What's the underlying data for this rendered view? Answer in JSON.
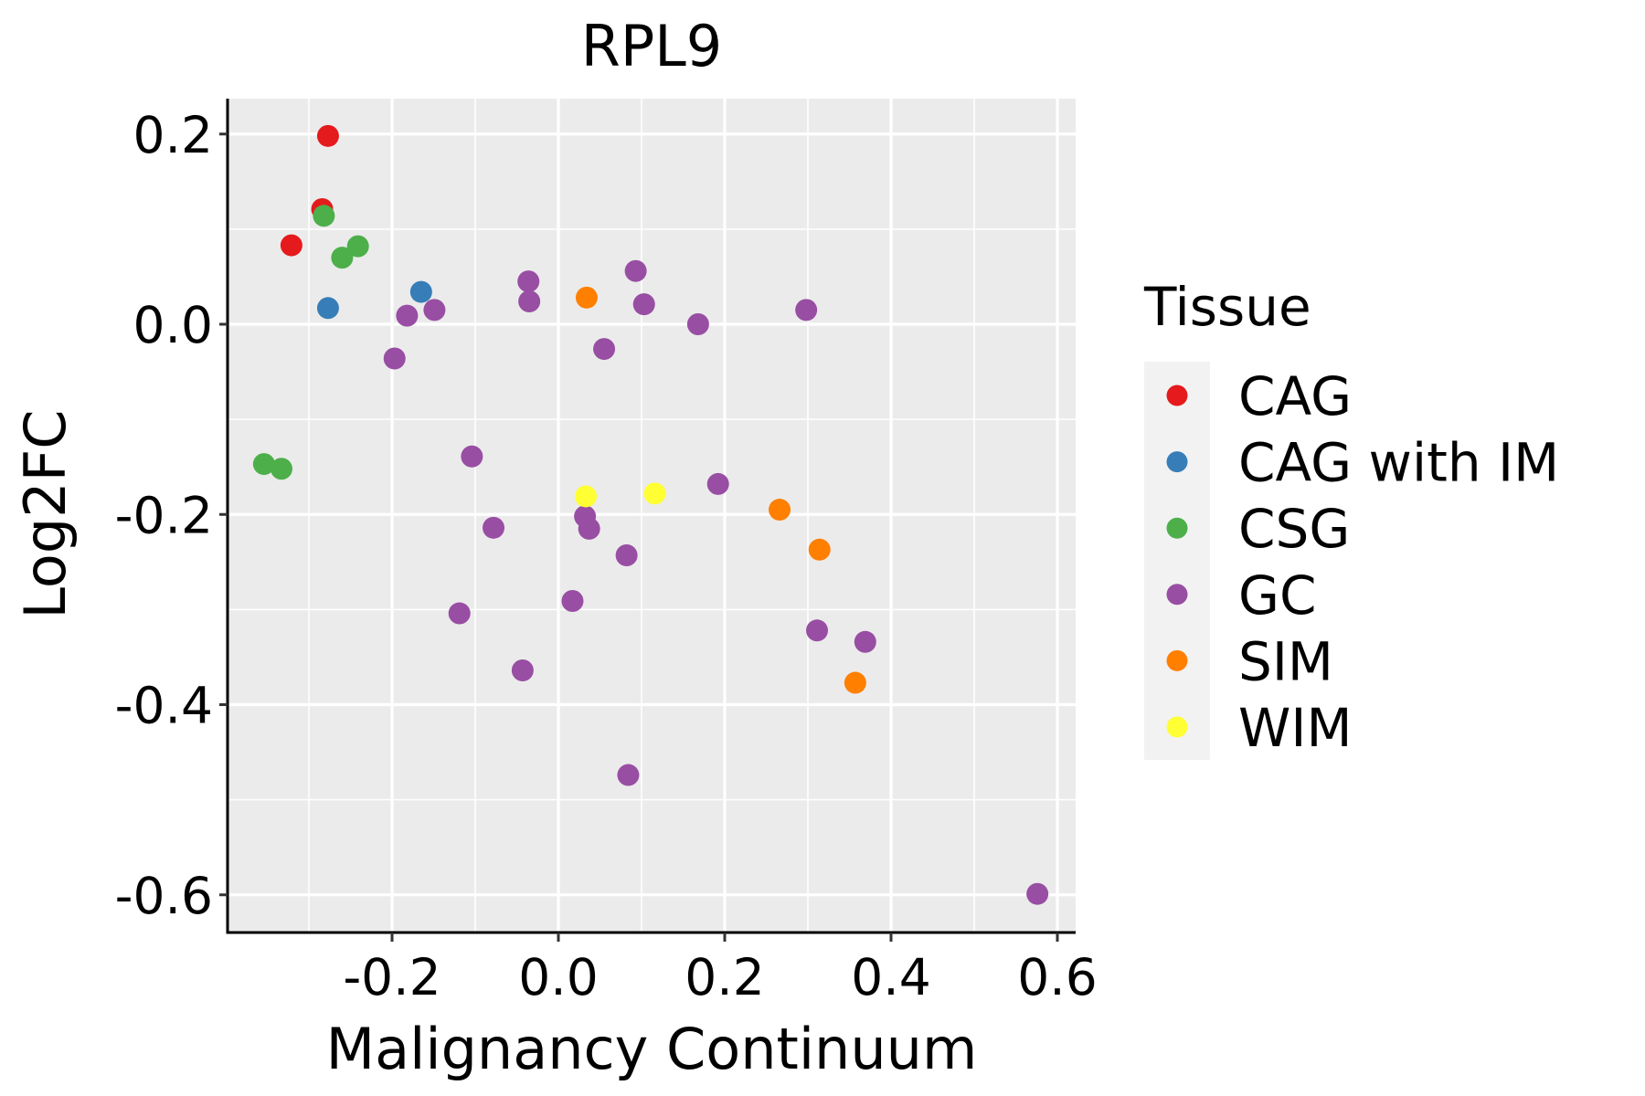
{
  "chart_data": {
    "type": "scatter",
    "title": "RPL9",
    "xlabel": "Malignancy Continuum",
    "ylabel": "Log2FC",
    "xlim": [
      -0.4,
      0.62
    ],
    "ylim": [
      -0.635,
      0.235
    ],
    "x_ticks": [
      -0.2,
      0.0,
      0.2,
      0.4,
      0.6
    ],
    "x_tick_labels": [
      "-0.2",
      "0.0",
      "0.2",
      "0.4",
      "0.6"
    ],
    "x_minor_breaks": [
      -0.3,
      -0.1,
      0.1,
      0.3,
      0.5
    ],
    "y_ticks": [
      0.2,
      0.0,
      -0.2,
      -0.4,
      -0.6
    ],
    "y_tick_labels": [
      "0.2",
      "0.0",
      "-0.2",
      "-0.4",
      "-0.6"
    ],
    "y_minor_breaks": [
      0.1,
      -0.1,
      -0.3,
      -0.5
    ],
    "grid": true,
    "panel_background": "#EBEBEB",
    "legend": {
      "title": "Tissue",
      "position": "right",
      "entries": [
        {
          "label": "CAG",
          "color": "#E41A1C"
        },
        {
          "label": "CAG with IM",
          "color": "#377EB8"
        },
        {
          "label": "CSG",
          "color": "#4DAF4A"
        },
        {
          "label": "GC",
          "color": "#984EA3"
        },
        {
          "label": "SIM",
          "color": "#FF7F00"
        },
        {
          "label": "WIM",
          "color": "#FFFF33"
        }
      ]
    },
    "series": [
      {
        "name": "CAG",
        "color": "#E41A1C",
        "points": [
          {
            "x": -0.277,
            "y": 0.198
          },
          {
            "x": -0.284,
            "y": 0.121
          },
          {
            "x": -0.321,
            "y": 0.083
          }
        ]
      },
      {
        "name": "CAG with IM",
        "color": "#377EB8",
        "points": [
          {
            "x": -0.277,
            "y": 0.017
          },
          {
            "x": -0.165,
            "y": 0.034
          }
        ]
      },
      {
        "name": "CSG",
        "color": "#4DAF4A",
        "points": [
          {
            "x": -0.282,
            "y": 0.114
          },
          {
            "x": -0.26,
            "y": 0.07
          },
          {
            "x": -0.241,
            "y": 0.082
          },
          {
            "x": -0.354,
            "y": -0.147
          },
          {
            "x": -0.333,
            "y": -0.152
          }
        ]
      },
      {
        "name": "GC",
        "color": "#984EA3",
        "points": [
          {
            "x": -0.182,
            "y": 0.009
          },
          {
            "x": -0.149,
            "y": 0.015
          },
          {
            "x": -0.197,
            "y": -0.036
          },
          {
            "x": -0.036,
            "y": 0.045
          },
          {
            "x": -0.035,
            "y": 0.024
          },
          {
            "x": 0.093,
            "y": 0.056
          },
          {
            "x": 0.103,
            "y": 0.021
          },
          {
            "x": 0.168,
            "y": 0.0
          },
          {
            "x": 0.055,
            "y": -0.026
          },
          {
            "x": 0.298,
            "y": 0.015
          },
          {
            "x": -0.104,
            "y": -0.139
          },
          {
            "x": -0.078,
            "y": -0.214
          },
          {
            "x": 0.032,
            "y": -0.202
          },
          {
            "x": 0.037,
            "y": -0.215
          },
          {
            "x": 0.082,
            "y": -0.243
          },
          {
            "x": 0.192,
            "y": -0.168
          },
          {
            "x": -0.119,
            "y": -0.304
          },
          {
            "x": 0.017,
            "y": -0.291
          },
          {
            "x": -0.043,
            "y": -0.364
          },
          {
            "x": 0.084,
            "y": -0.474
          },
          {
            "x": 0.311,
            "y": -0.322
          },
          {
            "x": 0.369,
            "y": -0.334
          },
          {
            "x": 0.576,
            "y": -0.599
          }
        ]
      },
      {
        "name": "SIM",
        "color": "#FF7F00",
        "points": [
          {
            "x": 0.034,
            "y": 0.028
          },
          {
            "x": 0.266,
            "y": -0.195
          },
          {
            "x": 0.314,
            "y": -0.237
          },
          {
            "x": 0.357,
            "y": -0.377
          }
        ]
      },
      {
        "name": "WIM",
        "color": "#FFFF33",
        "points": [
          {
            "x": 0.033,
            "y": -0.181
          },
          {
            "x": 0.116,
            "y": -0.178
          }
        ]
      }
    ]
  }
}
